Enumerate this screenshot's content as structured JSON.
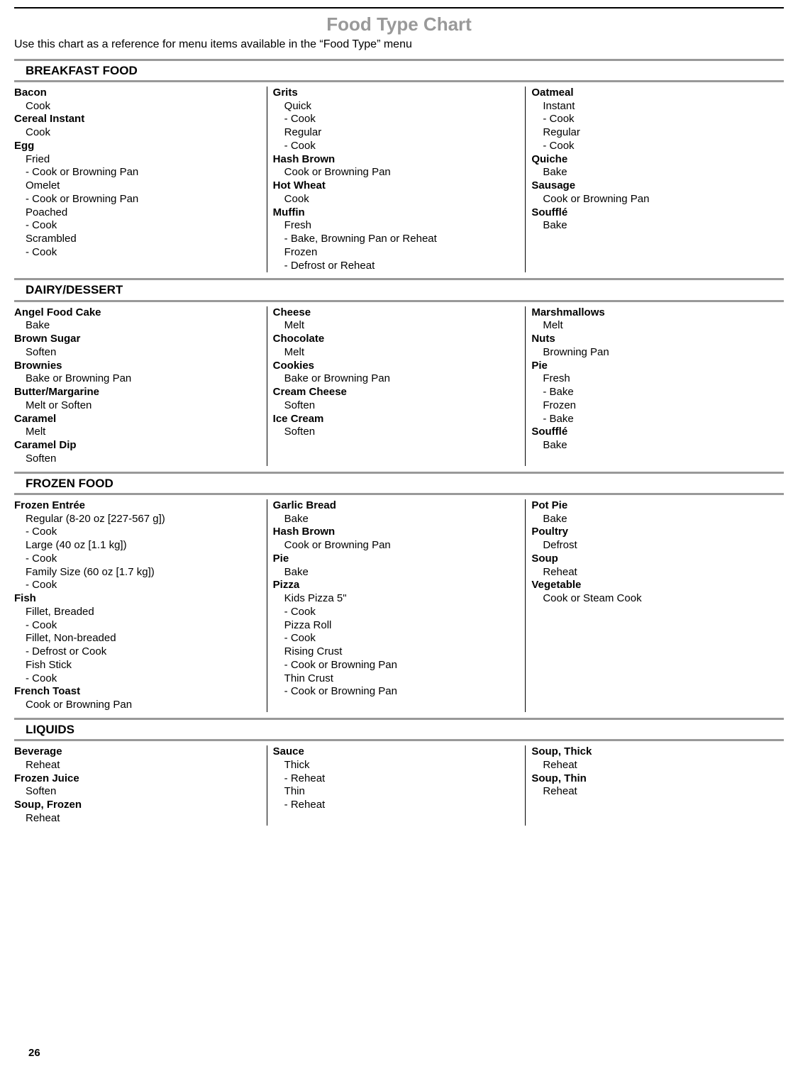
{
  "title": "Food Type Chart",
  "subtitle": "Use this chart as a reference for menu items available in the “Food Type” menu",
  "page_number": "26",
  "sections": [
    {
      "heading": "BREAKFAST FOOD",
      "columns": [
        [
          {
            "name": "Bacon",
            "subs": [
              {
                "label": "Cook"
              }
            ]
          },
          {
            "name": "Cereal Instant",
            "subs": [
              {
                "label": "Cook"
              }
            ]
          },
          {
            "name": "Egg",
            "subs": [
              {
                "label": "Fried"
              },
              {
                "label": "Cook or Browning Pan",
                "dash": true
              },
              {
                "label": "Omelet"
              },
              {
                "label": "Cook or Browning Pan",
                "dash": true
              },
              {
                "label": "Poached"
              },
              {
                "label": "Cook",
                "dash": true
              },
              {
                "label": "Scrambled"
              },
              {
                "label": "Cook",
                "dash": true
              }
            ]
          }
        ],
        [
          {
            "name": "Grits",
            "subs": [
              {
                "label": "Quick"
              },
              {
                "label": "Cook",
                "dash": true
              },
              {
                "label": "Regular"
              },
              {
                "label": "Cook",
                "dash": true
              }
            ]
          },
          {
            "name": "Hash Brown",
            "subs": [
              {
                "label": "Cook or Browning Pan"
              }
            ]
          },
          {
            "name": "Hot Wheat",
            "subs": [
              {
                "label": "Cook"
              }
            ]
          },
          {
            "name": "Muffin",
            "subs": [
              {
                "label": "Fresh"
              },
              {
                "label": "Bake, Browning Pan or Reheat",
                "dash": true
              },
              {
                "label": "Frozen"
              },
              {
                "label": "Defrost or Reheat",
                "dash": true
              }
            ]
          }
        ],
        [
          {
            "name": "Oatmeal",
            "subs": [
              {
                "label": "Instant"
              },
              {
                "label": "Cook",
                "dash": true
              },
              {
                "label": "Regular"
              },
              {
                "label": "Cook",
                "dash": true
              }
            ]
          },
          {
            "name": "Quiche",
            "subs": [
              {
                "label": "Bake"
              }
            ]
          },
          {
            "name": "Sausage",
            "subs": [
              {
                "label": "Cook or Browning Pan"
              }
            ]
          },
          {
            "name": "Soufflé",
            "subs": [
              {
                "label": "Bake"
              }
            ]
          }
        ]
      ]
    },
    {
      "heading": "DAIRY/DESSERT",
      "columns": [
        [
          {
            "name": "Angel Food Cake",
            "subs": [
              {
                "label": "Bake"
              }
            ]
          },
          {
            "name": "Brown Sugar",
            "subs": [
              {
                "label": "Soften"
              }
            ]
          },
          {
            "name": "Brownies",
            "subs": [
              {
                "label": "Bake or Browning Pan"
              }
            ]
          },
          {
            "name": "Butter/Margarine",
            "subs": [
              {
                "label": "Melt or Soften"
              }
            ]
          },
          {
            "name": "Caramel",
            "subs": [
              {
                "label": "Melt"
              }
            ]
          },
          {
            "name": "Caramel Dip",
            "subs": [
              {
                "label": "Soften"
              }
            ]
          }
        ],
        [
          {
            "name": "Cheese",
            "subs": [
              {
                "label": "Melt"
              }
            ]
          },
          {
            "name": "Chocolate",
            "subs": [
              {
                "label": "Melt"
              }
            ]
          },
          {
            "name": "Cookies",
            "subs": [
              {
                "label": "Bake or Browning Pan"
              }
            ]
          },
          {
            "name": "Cream Cheese",
            "subs": [
              {
                "label": "Soften"
              }
            ]
          },
          {
            "name": "Ice Cream",
            "subs": [
              {
                "label": "Soften"
              }
            ]
          }
        ],
        [
          {
            "name": "Marshmallows",
            "subs": [
              {
                "label": "Melt"
              }
            ]
          },
          {
            "name": "Nuts",
            "subs": [
              {
                "label": "Browning Pan"
              }
            ]
          },
          {
            "name": "Pie",
            "subs": [
              {
                "label": "Fresh"
              },
              {
                "label": "Bake",
                "dash": true
              },
              {
                "label": "Frozen"
              },
              {
                "label": "Bake",
                "dash": true
              }
            ]
          },
          {
            "name": "Soufflé",
            "subs": [
              {
                "label": "Bake"
              }
            ]
          }
        ]
      ]
    },
    {
      "heading": "FROZEN FOOD",
      "columns": [
        [
          {
            "name": "Frozen Entrée",
            "subs": [
              {
                "label": "Regular (8-20 oz [227-567 g])"
              },
              {
                "label": "Cook",
                "dash": true
              },
              {
                "label": "Large (40 oz [1.1 kg])"
              },
              {
                "label": "Cook",
                "dash": true
              },
              {
                "label": "Family Size (60 oz [1.7 kg])"
              },
              {
                "label": "Cook",
                "dash": true
              }
            ]
          },
          {
            "name": "Fish",
            "subs": [
              {
                "label": "Fillet, Breaded"
              },
              {
                "label": "Cook",
                "dash": true
              },
              {
                "label": "Fillet, Non-breaded"
              },
              {
                "label": "Defrost or Cook",
                "dash": true
              },
              {
                "label": "Fish Stick"
              },
              {
                "label": "Cook",
                "dash": true
              }
            ]
          },
          {
            "name": "French Toast",
            "subs": [
              {
                "label": "Cook or Browning Pan"
              }
            ]
          }
        ],
        [
          {
            "name": "Garlic Bread",
            "subs": [
              {
                "label": "Bake"
              }
            ]
          },
          {
            "name": "Hash Brown",
            "subs": [
              {
                "label": "Cook or Browning Pan"
              }
            ]
          },
          {
            "name": "Pie",
            "subs": [
              {
                "label": "Bake"
              }
            ]
          },
          {
            "name": "Pizza",
            "subs": [
              {
                "label": "Kids Pizza 5\""
              },
              {
                "label": "Cook",
                "dash": true
              },
              {
                "label": "Pizza Roll"
              },
              {
                "label": "Cook",
                "dash": true
              },
              {
                "label": "Rising Crust"
              },
              {
                "label": "Cook or Browning Pan",
                "dash": true
              },
              {
                "label": "Thin Crust"
              },
              {
                "label": "Cook or Browning Pan",
                "dash": true
              }
            ]
          }
        ],
        [
          {
            "name": "Pot Pie",
            "subs": [
              {
                "label": "Bake"
              }
            ]
          },
          {
            "name": "Poultry",
            "subs": [
              {
                "label": "Defrost"
              }
            ]
          },
          {
            "name": "Soup",
            "subs": [
              {
                "label": "Reheat"
              }
            ]
          },
          {
            "name": "Vegetable",
            "subs": [
              {
                "label": "Cook or Steam Cook"
              }
            ]
          }
        ]
      ]
    },
    {
      "heading": "LIQUIDS",
      "columns": [
        [
          {
            "name": "Beverage",
            "subs": [
              {
                "label": "Reheat"
              }
            ]
          },
          {
            "name": "Frozen Juice",
            "subs": [
              {
                "label": "Soften"
              }
            ]
          },
          {
            "name": "Soup, Frozen",
            "subs": [
              {
                "label": "Reheat"
              }
            ]
          }
        ],
        [
          {
            "name": "Sauce",
            "subs": [
              {
                "label": "Thick"
              },
              {
                "label": "Reheat",
                "dash": true
              },
              {
                "label": "Thin"
              },
              {
                "label": "Reheat",
                "dash": true
              }
            ]
          }
        ],
        [
          {
            "name": "Soup, Thick",
            "subs": [
              {
                "label": "Reheat"
              }
            ]
          },
          {
            "name": "Soup, Thin",
            "subs": [
              {
                "label": "Reheat"
              }
            ]
          }
        ]
      ]
    }
  ]
}
